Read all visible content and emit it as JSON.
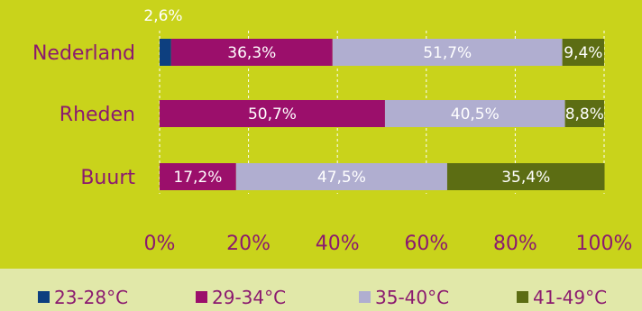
{
  "colors": {
    "plot_background": "#c9d31b",
    "legend_background": "#e1e8a9",
    "category_label": "#8b1a6f",
    "tick_label": "#8b1a6f",
    "data_label": "#ffffff",
    "gridline": "#ffffff"
  },
  "chart_data": {
    "type": "bar",
    "orientation": "horizontal",
    "stacked": "percent",
    "categories": [
      "Nederland",
      "Rheden",
      "Buurt"
    ],
    "series": [
      {
        "name": "23-28°C",
        "color": "#0d3f7f",
        "values": [
          2.6,
          0,
          0
        ],
        "labels": [
          "2,6%",
          "",
          ""
        ]
      },
      {
        "name": "29-34°C",
        "color": "#9b0f6b",
        "values": [
          36.3,
          50.7,
          17.2
        ],
        "labels": [
          "36,3%",
          "50,7%",
          "17,2%"
        ]
      },
      {
        "name": "35-40°C",
        "color": "#b0aed0",
        "values": [
          51.7,
          40.5,
          47.5
        ],
        "labels": [
          "51,7%",
          "40,5%",
          "47,5%"
        ]
      },
      {
        "name": "41-49°C",
        "color": "#5c6d13",
        "values": [
          9.4,
          8.8,
          35.4
        ],
        "labels": [
          "9,4%",
          "8,8%",
          "35,4%"
        ]
      }
    ],
    "xlim": [
      0,
      100
    ],
    "x_ticks": [
      "0%",
      "20%",
      "40%",
      "60%",
      "80%",
      "100%"
    ],
    "grid": true,
    "legend_position": "bottom"
  }
}
